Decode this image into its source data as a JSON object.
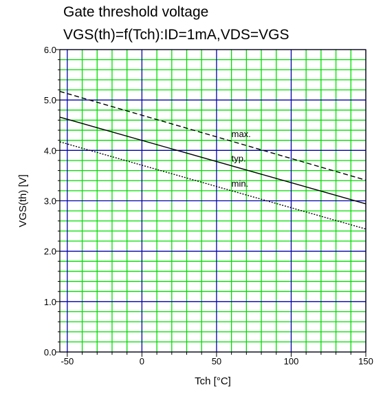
{
  "chart_data": {
    "type": "line",
    "title": "Gate threshold voltage",
    "subtitle": "VGS(th)=f(Tch):ID=1mA,VDS=VGS",
    "xlabel": "Tch [°C]",
    "ylabel": "VGS(th) [V]",
    "xlim": [
      -55,
      150
    ],
    "ylim": [
      0,
      6
    ],
    "x_ticks": [
      -50,
      0,
      50,
      100,
      150
    ],
    "x_tick_labels": [
      "-50",
      "0",
      "50",
      "100",
      "150"
    ],
    "y_ticks": [
      0,
      1,
      2,
      3,
      4,
      5,
      6
    ],
    "y_tick_labels": [
      "0.0",
      "1.0",
      "2.0",
      "3.0",
      "4.0",
      "5.0",
      "6.0"
    ],
    "grid": true,
    "series": [
      {
        "name": "max.",
        "style": "dashed",
        "x": [
          -55,
          150
        ],
        "y": [
          5.17,
          3.41
        ]
      },
      {
        "name": "typ.",
        "style": "solid",
        "x": [
          -55,
          150
        ],
        "y": [
          4.66,
          2.94
        ]
      },
      {
        "name": "min.",
        "style": "dotted",
        "x": [
          -55,
          150
        ],
        "y": [
          4.17,
          2.44
        ]
      }
    ],
    "colors": {
      "major_grid": "#0000aa",
      "minor_grid": "#00dd00",
      "line": "#000000"
    }
  }
}
